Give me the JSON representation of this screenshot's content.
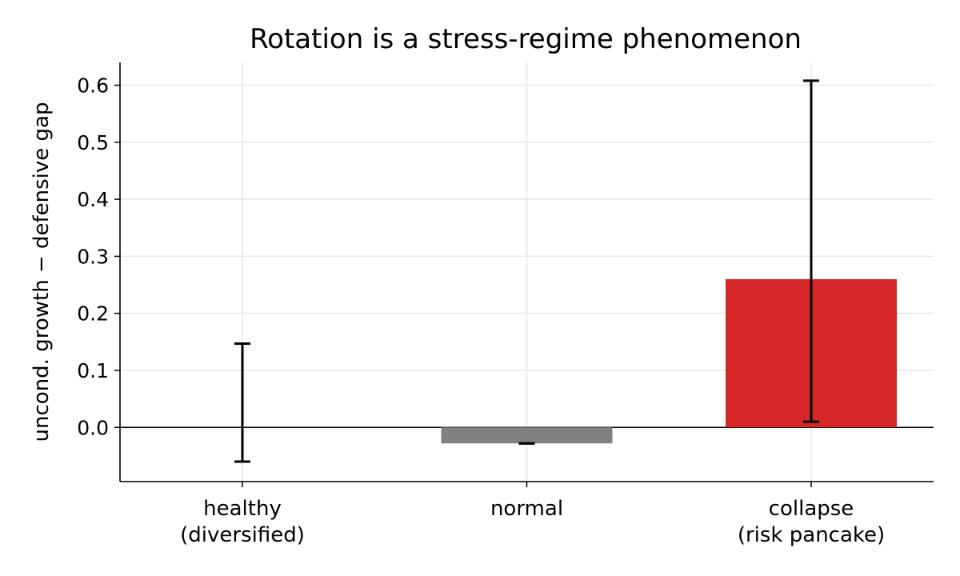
{
  "chart_data": {
    "type": "bar",
    "title": "Rotation is a stress-regime phenomenon",
    "xlabel": "",
    "ylabel": "uncond. growth − defensive gap",
    "categories": [
      {
        "line1": "healthy",
        "line2": "(diversified)"
      },
      {
        "line1": "normal",
        "line2": ""
      },
      {
        "line1": "collapse",
        "line2": "(risk pancake)"
      }
    ],
    "values": [
      0.0,
      -0.028,
      0.26
    ],
    "error_low": [
      -0.06,
      -0.028,
      0.01
    ],
    "error_high": [
      0.147,
      -0.028,
      0.608
    ],
    "colors": [
      "#1f77b4",
      "#808080",
      "#d62728"
    ],
    "ylim": [
      -0.095,
      0.64
    ],
    "yticks": [
      "0.0",
      "0.1",
      "0.2",
      "0.3",
      "0.4",
      "0.5",
      "0.6"
    ],
    "ytick_values": [
      0.0,
      0.1,
      0.2,
      0.3,
      0.4,
      0.5,
      0.6
    ],
    "grid": true,
    "zero_line": true
  }
}
